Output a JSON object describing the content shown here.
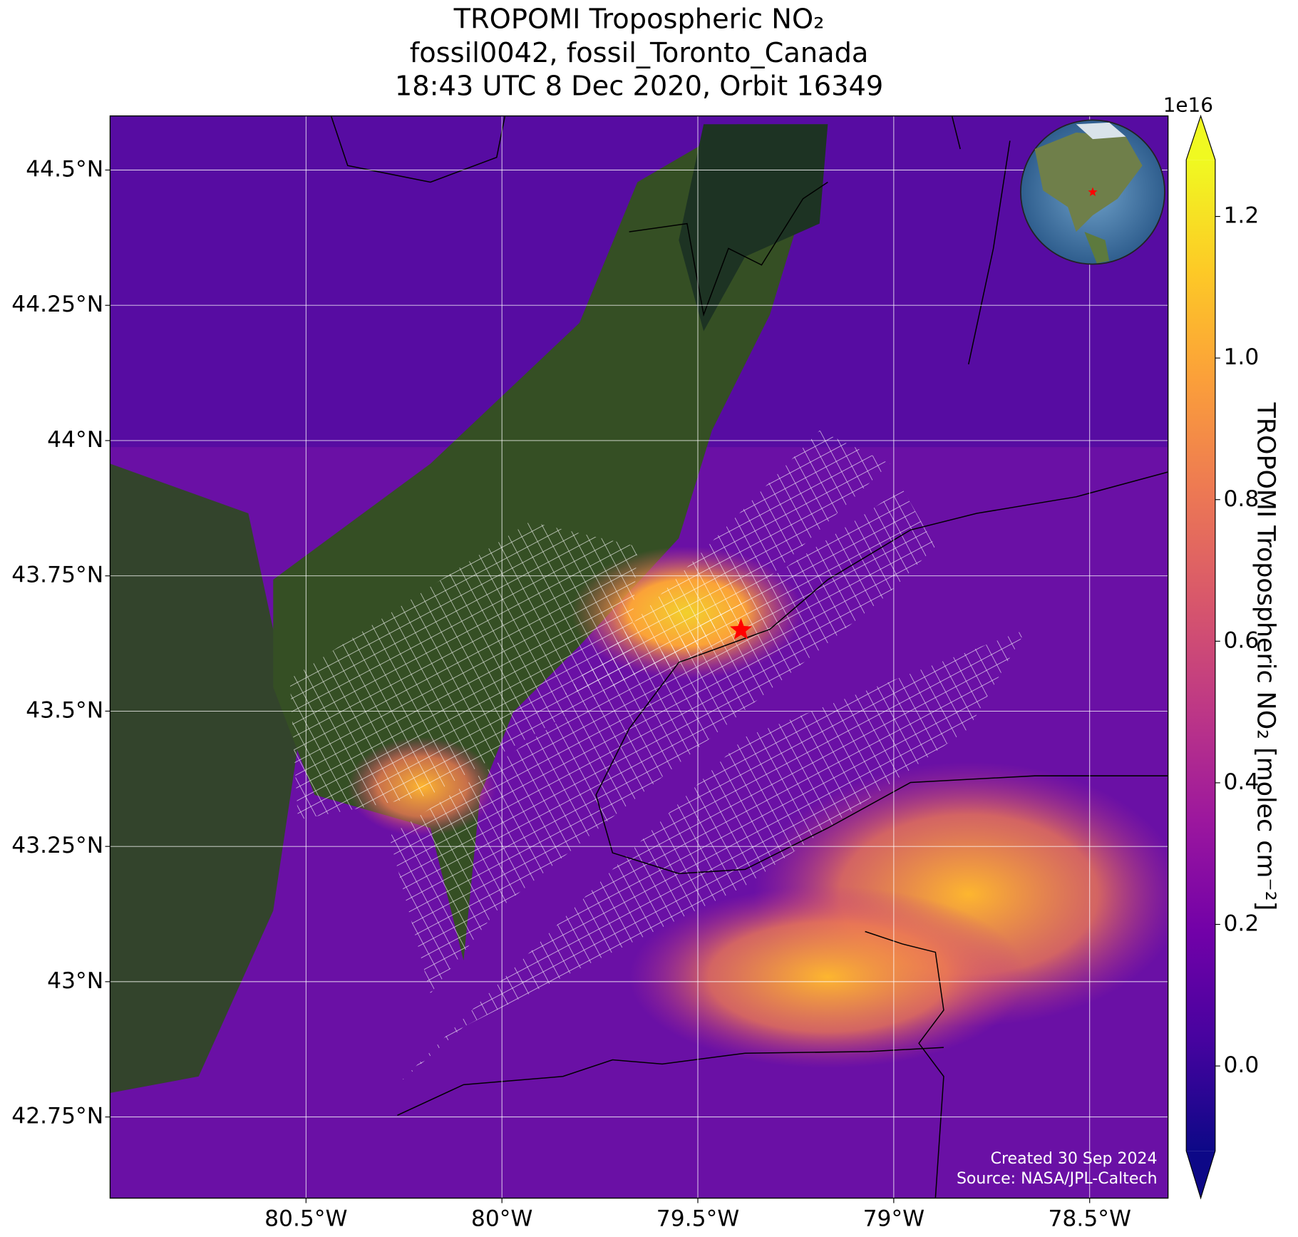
{
  "title": [
    "TROPOMI Tropospheric NO₂",
    "fossil0042, fossil_Toronto_Canada",
    "18:43 UTC 8 Dec 2020, Orbit 16349"
  ],
  "map": {
    "xlim": [
      -81.0,
      -78.3
    ],
    "ylim": [
      42.6,
      44.6
    ],
    "xticks": [
      {
        "value": -80.5,
        "label": "80.5°W"
      },
      {
        "value": -80,
        "label": "80°W"
      },
      {
        "value": -79.5,
        "label": "79.5°W"
      },
      {
        "value": -79,
        "label": "79°W"
      },
      {
        "value": -78.5,
        "label": "78.5°W"
      }
    ],
    "yticks": [
      {
        "value": 42.75,
        "label": "42.75°N"
      },
      {
        "value": 43,
        "label": "43°N"
      },
      {
        "value": 43.25,
        "label": "43.25°N"
      },
      {
        "value": 43.5,
        "label": "43.5°N"
      },
      {
        "value": 43.75,
        "label": "43.75°N"
      },
      {
        "value": 44,
        "label": "44°N"
      },
      {
        "value": 44.25,
        "label": "44.25°N"
      },
      {
        "value": 44.5,
        "label": "44.5°N"
      }
    ],
    "grid": true,
    "target": {
      "lon": -79.39,
      "lat": 43.65,
      "color": "red"
    }
  },
  "colorbar": {
    "label": "TROPOMI Tropospheric NO₂ [molec cm⁻²]",
    "offset_label": "1e16",
    "colormap": "plasma",
    "clim": [
      -0.12,
      1.28
    ],
    "ticks": [
      {
        "value": 0,
        "label": "0.0"
      },
      0.2,
      0.4,
      0.6,
      0.8,
      {
        "value": 1,
        "label": "1.0"
      },
      1.2
    ]
  },
  "footer": [
    "Created 30 Sep 2024",
    "Source: NASA/JPL-Caltech"
  ]
}
